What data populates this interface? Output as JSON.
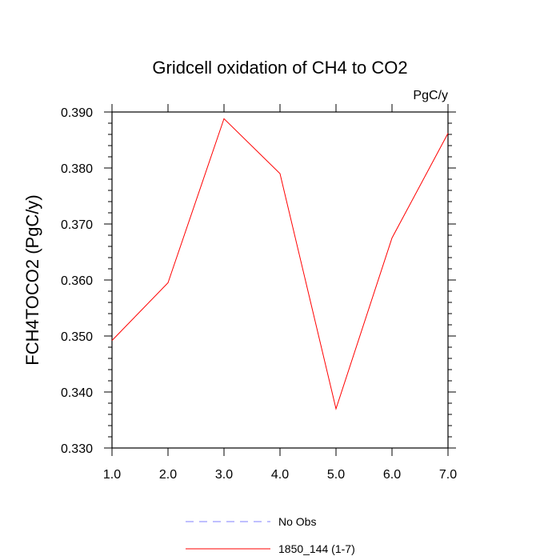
{
  "chart_data": {
    "type": "line",
    "title": "Gridcell oxidation of CH4 to CO2",
    "units_label": "PgC/y",
    "xlabel": "",
    "ylabel": "FCH4TOCO2  (PgC/y)",
    "xlim": [
      1.0,
      7.0
    ],
    "ylim": [
      0.33,
      0.39
    ],
    "x_ticks": [
      1.0,
      2.0,
      3.0,
      4.0,
      5.0,
      6.0,
      7.0
    ],
    "x_tick_labels": [
      "1.0",
      "2.0",
      "3.0",
      "4.0",
      "5.0",
      "6.0",
      "7.0"
    ],
    "y_ticks": [
      0.33,
      0.34,
      0.35,
      0.36,
      0.37,
      0.38,
      0.39
    ],
    "y_tick_labels": [
      "0.330",
      "0.340",
      "0.350",
      "0.360",
      "0.370",
      "0.380",
      "0.390"
    ],
    "grid": false,
    "legend_position": "bottom-center",
    "series": [
      {
        "name": "1850_144 (1-7)",
        "color": "#ff0000",
        "style": "solid",
        "x": [
          1,
          2,
          3,
          4,
          5,
          6,
          7
        ],
        "values": [
          0.3492,
          0.3595,
          0.3888,
          0.379,
          0.337,
          0.3675,
          0.3862
        ]
      }
    ],
    "legend": [
      {
        "label": "No Obs",
        "color": "#8080ff",
        "style": "dashed"
      },
      {
        "label": "1850_144 (1-7)",
        "color": "#ff0000",
        "style": "solid"
      }
    ]
  }
}
